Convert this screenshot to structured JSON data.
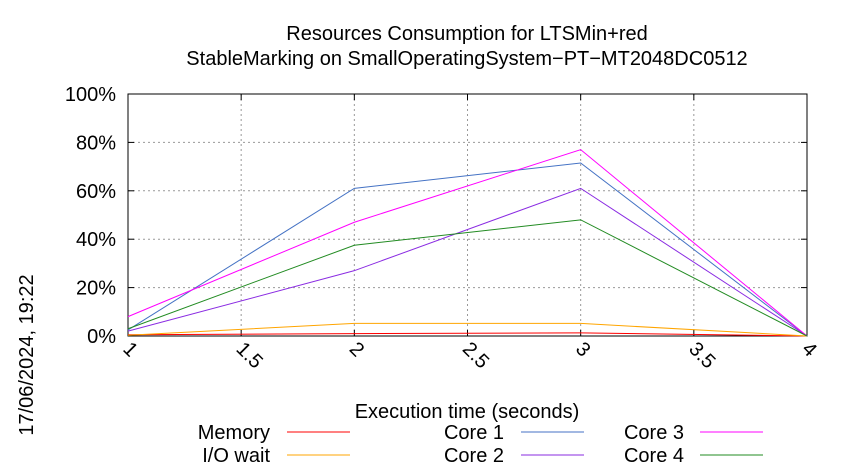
{
  "chart_data": {
    "type": "line",
    "title_lines": [
      "Resources Consumption for LTSMin+red",
      "StableMarking on SmallOperatingSystem−PT−MT2048DC0512"
    ],
    "xlabel": "Execution time (seconds)",
    "ylabel": "",
    "xlim": [
      1,
      4
    ],
    "ylim": [
      0,
      100
    ],
    "x_ticks": [
      1,
      1.5,
      2,
      2.5,
      3,
      3.5,
      4
    ],
    "x_tick_labels": [
      "1",
      "1.5",
      "2",
      "2.5",
      "3",
      "3.5",
      "4"
    ],
    "y_ticks": [
      0,
      20,
      40,
      60,
      80,
      100
    ],
    "y_tick_labels": [
      "0%",
      "20%",
      "40%",
      "60%",
      "80%",
      "100%"
    ],
    "grid": true,
    "legend_position": "bottom",
    "timestamp": "17/06/2024, 19:22",
    "series": [
      {
        "name": "Memory",
        "color": "#ff0000",
        "x": [
          1,
          2,
          3,
          4
        ],
        "y": [
          0.5,
          1,
          1.3,
          0
        ]
      },
      {
        "name": "I/O wait",
        "color": "#ffa500",
        "x": [
          1,
          2,
          3,
          4
        ],
        "y": [
          0.3,
          5.2,
          5.2,
          0
        ]
      },
      {
        "name": "Core 1",
        "color": "#4472c4",
        "x": [
          1,
          2,
          3,
          4
        ],
        "y": [
          2.5,
          61,
          71.5,
          0
        ]
      },
      {
        "name": "Core 2",
        "color": "#8a2be2",
        "x": [
          1,
          2,
          3,
          4
        ],
        "y": [
          2,
          27,
          61,
          0
        ]
      },
      {
        "name": "Core 3",
        "color": "#ff00ff",
        "x": [
          1,
          2,
          3,
          4
        ],
        "y": [
          8,
          47,
          77,
          0
        ]
      },
      {
        "name": "Core 4",
        "color": "#228b22",
        "x": [
          1,
          2,
          3,
          4
        ],
        "y": [
          3,
          37.5,
          48,
          0
        ]
      }
    ]
  }
}
